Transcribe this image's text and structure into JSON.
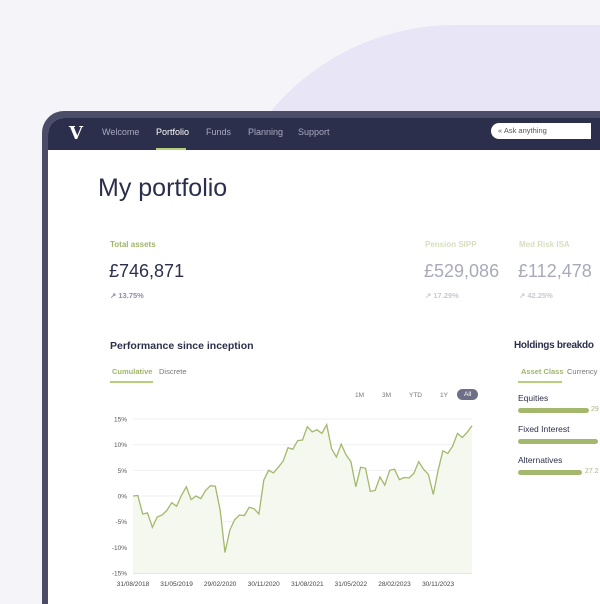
{
  "nav": {
    "items": [
      "Welcome",
      "Portfolio",
      "Funds",
      "Planning",
      "Support"
    ],
    "active": "Portfolio",
    "search_placeholder": "Ask anything",
    "logo": "V"
  },
  "page_title": "My portfolio",
  "summary": {
    "total": {
      "label": "Total assets",
      "value": "£746,871",
      "change": "13.75%"
    },
    "accounts": [
      {
        "label": "Pension SIPP",
        "value": "£529,086",
        "change": "17.29%"
      },
      {
        "label": "Med Risk ISA",
        "value": "£112,478",
        "change": "42.25%"
      }
    ]
  },
  "performance": {
    "title": "Performance since inception",
    "tabs": [
      "Cumulative",
      "Discrete"
    ],
    "active_tab": "Cumulative",
    "ranges": [
      "1M",
      "3M",
      "YTD",
      "1Y",
      "All"
    ],
    "active_range": "All"
  },
  "holdings": {
    "title": "Holdings breakdo",
    "tabs": [
      "Asset Class",
      "Currency"
    ],
    "active_tab": "Asset Class",
    "items": [
      {
        "label": "Equities",
        "value": "29",
        "fraction": 0.29
      },
      {
        "label": "Fixed Interest",
        "value": "",
        "fraction": 0.33
      },
      {
        "label": "Alternatives",
        "value": "27.2",
        "fraction": 0.27
      }
    ]
  },
  "colors": {
    "accent": "#a3b86c",
    "nav": "#2c2f4b"
  },
  "chart_data": {
    "type": "area",
    "ylim": [
      -15,
      15
    ],
    "y_ticks": [
      "15%",
      "10%",
      "5%",
      "0%",
      "-5%",
      "-10%",
      "-15%"
    ],
    "x_ticks": [
      "31/08/2018",
      "31/05/2019",
      "29/02/2020",
      "30/11/2020",
      "31/08/2021",
      "31/05/2022",
      "28/02/2023",
      "30/11/2023"
    ],
    "grid": true,
    "series": [
      {
        "values": [
          0,
          0.1,
          -3.5,
          -3.3,
          -6.1,
          -4.1,
          -3.7,
          -2.8,
          -1.3,
          -2,
          0.1,
          1.8,
          -0.7,
          0,
          -0.5,
          1.1,
          2,
          1.9,
          -2.8,
          -11,
          -6.6,
          -4.6,
          -3.7,
          -3.8,
          -2.2,
          -2.5,
          -3.5,
          3.1,
          5,
          4.5,
          5.6,
          6.8,
          9.4,
          9.1,
          10.8,
          10.9,
          13.5,
          12.5,
          12.9,
          12.2,
          13.9,
          9.2,
          7.6,
          10.1,
          8,
          6.7,
          1.8,
          5.6,
          5.4,
          0.9,
          1.1,
          3.7,
          2.1,
          5,
          5.2,
          3.2,
          3.6,
          3.5,
          4.4,
          6.7,
          5.2,
          4.2,
          0.3,
          5,
          8.8,
          8.3,
          9.7,
          12.2,
          11.4,
          12.4,
          13.7
        ]
      }
    ]
  }
}
